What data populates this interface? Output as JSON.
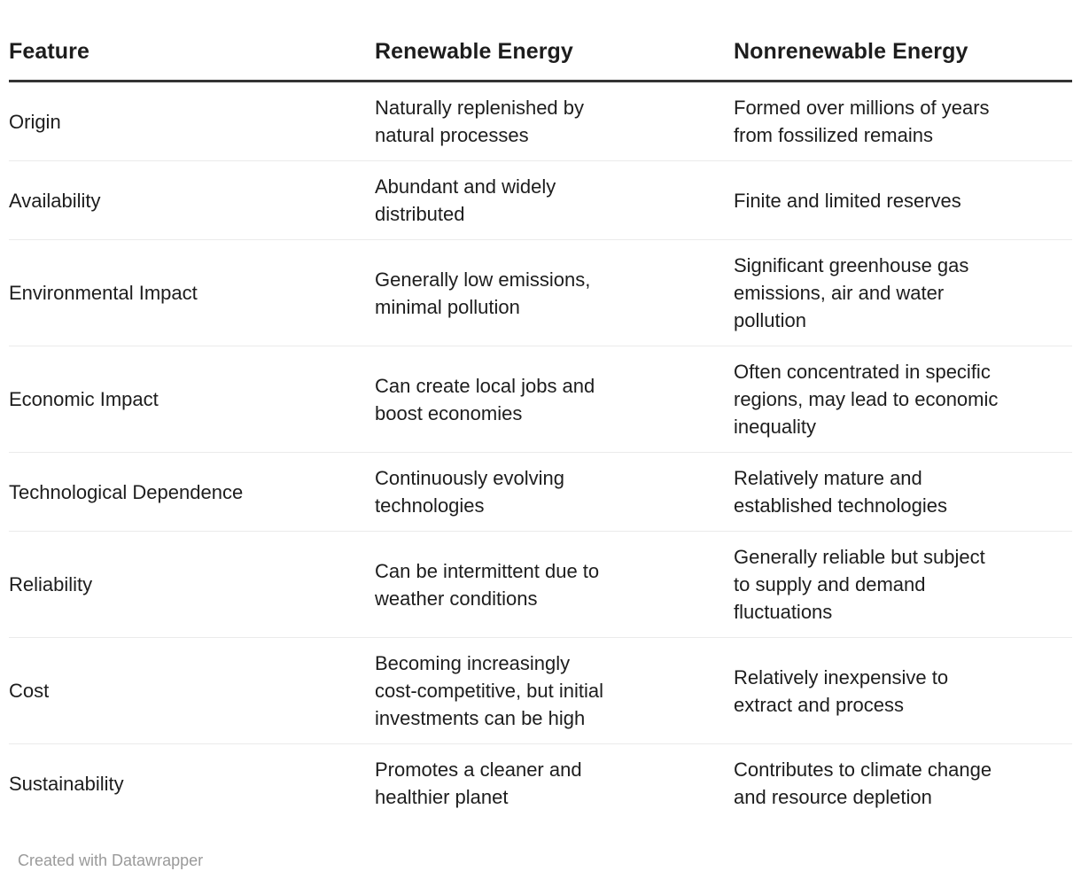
{
  "table": {
    "columns": [
      {
        "label": "Feature"
      },
      {
        "label": "Renewable Energy"
      },
      {
        "label": "Nonrenewable Energy"
      }
    ],
    "rows": [
      {
        "feature": "Origin",
        "renewable": "Naturally replenished by\nnatural processes",
        "nonrenewable": "Formed over millions of years\nfrom fossilized remains"
      },
      {
        "feature": "Availability",
        "renewable": "Abundant and widely\ndistributed",
        "nonrenewable": "Finite and limited reserves"
      },
      {
        "feature": "Environmental Impact",
        "renewable": "Generally low emissions,\nminimal pollution",
        "nonrenewable": "Significant greenhouse gas\nemissions, air and water\npollution"
      },
      {
        "feature": "Economic Impact",
        "renewable": "Can create local jobs and\nboost economies",
        "nonrenewable": "Often concentrated in specific\nregions, may lead to economic\ninequality"
      },
      {
        "feature": "Technological Dependence",
        "renewable": "Continuously evolving\ntechnologies",
        "nonrenewable": "Relatively mature and\nestablished technologies"
      },
      {
        "feature": "Reliability",
        "renewable": "Can be intermittent due to\nweather conditions",
        "nonrenewable": "Generally reliable but subject\nto supply and demand\nfluctuations"
      },
      {
        "feature": "Cost",
        "renewable": "Becoming increasingly\ncost-competitive, but initial\ninvestments can be high",
        "nonrenewable": "Relatively inexpensive to\nextract and process"
      },
      {
        "feature": "Sustainability",
        "renewable": "Promotes a cleaner and\nhealthier planet",
        "nonrenewable": "Contributes to climate change\nand resource depletion"
      }
    ]
  },
  "footer": {
    "credit": "Created with Datawrapper"
  },
  "colors": {
    "background": "#ffffff",
    "text": "#1d1d1d",
    "header_rule": "#333333",
    "row_divider": "#ebebeb",
    "credit_text": "#9a9a9a"
  }
}
